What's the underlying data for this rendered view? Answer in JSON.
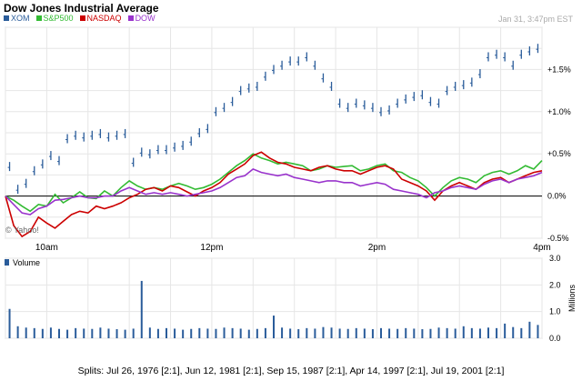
{
  "header": {
    "title": "Dow Jones Industrial Average",
    "timestamp": "Jan 31, 3:47pm EST"
  },
  "legend": [
    {
      "key": "XOM",
      "label": "XOM",
      "color": "#2a5c9a"
    },
    {
      "key": "SP500",
      "label": "S&P500",
      "color": "#33bb33"
    },
    {
      "key": "NASDAQ",
      "label": "NASDAQ",
      "color": "#cc0000"
    },
    {
      "key": "DOW",
      "label": "DOW",
      "color": "#9933cc"
    }
  ],
  "watermark": "© Yahoo!",
  "footer": {
    "splits": "Splits: Jul 26, 1976 [2:1], Jun 12, 1981 [2:1], Sep 15, 1987 [2:1], Apr 14, 1997 [2:1], Jul 19, 2001 [2:1]"
  },
  "chart_data": [
    {
      "type": "line",
      "x_label_ticks": [
        {
          "t": 10.0,
          "label": "10am"
        },
        {
          "t": 12.0,
          "label": "12pm"
        },
        {
          "t": 14.0,
          "label": "2pm"
        },
        {
          "t": 16.0,
          "label": "4pm"
        }
      ],
      "y_ticks": [
        {
          "v": 1.5,
          "label": "+1.5%"
        },
        {
          "v": 1.0,
          "label": "+1.0%"
        },
        {
          "v": 0.5,
          "label": "+0.5%"
        },
        {
          "v": 0.0,
          "label": "0.0%"
        },
        {
          "v": -0.5,
          "label": "-0.5%"
        }
      ],
      "x_range": [
        9.5,
        16.0
      ],
      "y_range": [
        -0.5,
        2.0
      ],
      "grid": true,
      "series": [
        {
          "name": "XOM",
          "style": "bars",
          "color": "#2a5c9a",
          "t": [
            9.55,
            9.65,
            9.75,
            9.85,
            9.95,
            10.05,
            10.15,
            10.25,
            10.35,
            10.45,
            10.55,
            10.65,
            10.75,
            10.85,
            10.95,
            11.05,
            11.15,
            11.25,
            11.35,
            11.45,
            11.55,
            11.65,
            11.75,
            11.85,
            11.95,
            12.05,
            12.15,
            12.25,
            12.35,
            12.45,
            12.55,
            12.65,
            12.75,
            12.85,
            12.95,
            13.05,
            13.15,
            13.25,
            13.35,
            13.45,
            13.55,
            13.65,
            13.75,
            13.85,
            13.95,
            14.05,
            14.15,
            14.25,
            14.35,
            14.45,
            14.55,
            14.65,
            14.75,
            14.85,
            14.95,
            15.05,
            15.15,
            15.25,
            15.35,
            15.45,
            15.55,
            15.65,
            15.75,
            15.85,
            15.95
          ],
          "v": [
            0.35,
            0.08,
            0.15,
            0.3,
            0.38,
            0.48,
            0.42,
            0.68,
            0.72,
            0.7,
            0.72,
            0.74,
            0.7,
            0.72,
            0.74,
            0.4,
            0.52,
            0.5,
            0.55,
            0.55,
            0.58,
            0.6,
            0.65,
            0.75,
            0.8,
            1.0,
            1.05,
            1.12,
            1.25,
            1.28,
            1.3,
            1.42,
            1.5,
            1.55,
            1.6,
            1.6,
            1.65,
            1.55,
            1.4,
            1.3,
            1.1,
            1.05,
            1.1,
            1.08,
            1.05,
            1.0,
            1.02,
            1.1,
            1.15,
            1.18,
            1.2,
            1.12,
            1.1,
            1.25,
            1.3,
            1.32,
            1.35,
            1.45,
            1.65,
            1.68,
            1.65,
            1.55,
            1.68,
            1.72,
            1.75
          ]
        },
        {
          "name": "S&P500",
          "style": "line",
          "color": "#33bb33",
          "t": [
            9.5,
            9.6,
            9.7,
            9.8,
            9.9,
            10.0,
            10.1,
            10.2,
            10.3,
            10.4,
            10.5,
            10.6,
            10.7,
            10.8,
            10.9,
            11.0,
            11.1,
            11.2,
            11.3,
            11.4,
            11.5,
            11.6,
            11.7,
            11.8,
            11.9,
            12.0,
            12.1,
            12.2,
            12.3,
            12.4,
            12.5,
            12.6,
            12.7,
            12.8,
            12.9,
            13.0,
            13.1,
            13.2,
            13.3,
            13.4,
            13.5,
            13.6,
            13.7,
            13.8,
            13.9,
            14.0,
            14.1,
            14.2,
            14.3,
            14.4,
            14.5,
            14.6,
            14.7,
            14.8,
            14.9,
            15.0,
            15.1,
            15.2,
            15.3,
            15.4,
            15.5,
            15.6,
            15.7,
            15.8,
            15.9,
            16.0
          ],
          "v": [
            0.0,
            -0.05,
            -0.12,
            -0.18,
            -0.1,
            -0.12,
            0.02,
            -0.08,
            -0.02,
            0.05,
            -0.02,
            -0.03,
            0.06,
            0.0,
            0.1,
            0.18,
            0.12,
            0.08,
            0.1,
            0.08,
            0.12,
            0.15,
            0.12,
            0.08,
            0.1,
            0.14,
            0.2,
            0.28,
            0.36,
            0.42,
            0.5,
            0.45,
            0.42,
            0.38,
            0.4,
            0.38,
            0.36,
            0.3,
            0.32,
            0.36,
            0.34,
            0.35,
            0.36,
            0.3,
            0.32,
            0.36,
            0.38,
            0.3,
            0.28,
            0.22,
            0.18,
            0.1,
            0.0,
            0.1,
            0.18,
            0.22,
            0.2,
            0.16,
            0.24,
            0.28,
            0.3,
            0.26,
            0.3,
            0.36,
            0.32,
            0.42
          ]
        },
        {
          "name": "NASDAQ",
          "style": "line",
          "color": "#cc0000",
          "t": [
            9.5,
            9.6,
            9.7,
            9.8,
            9.9,
            10.0,
            10.1,
            10.2,
            10.3,
            10.4,
            10.5,
            10.6,
            10.7,
            10.8,
            10.9,
            11.0,
            11.1,
            11.2,
            11.3,
            11.4,
            11.5,
            11.6,
            11.7,
            11.8,
            11.9,
            12.0,
            12.1,
            12.2,
            12.3,
            12.4,
            12.5,
            12.6,
            12.7,
            12.8,
            12.9,
            13.0,
            13.1,
            13.2,
            13.3,
            13.4,
            13.5,
            13.6,
            13.7,
            13.8,
            13.9,
            14.0,
            14.1,
            14.2,
            14.3,
            14.4,
            14.5,
            14.6,
            14.7,
            14.8,
            14.9,
            15.0,
            15.1,
            15.2,
            15.3,
            15.4,
            15.5,
            15.6,
            15.7,
            15.8,
            15.9,
            16.0
          ],
          "v": [
            0.0,
            -0.35,
            -0.48,
            -0.42,
            -0.25,
            -0.32,
            -0.38,
            -0.3,
            -0.22,
            -0.18,
            -0.2,
            -0.12,
            -0.15,
            -0.12,
            -0.08,
            -0.02,
            0.02,
            0.08,
            0.1,
            0.06,
            0.12,
            0.1,
            0.05,
            0.0,
            0.06,
            0.1,
            0.16,
            0.26,
            0.32,
            0.38,
            0.48,
            0.52,
            0.45,
            0.4,
            0.38,
            0.34,
            0.32,
            0.3,
            0.34,
            0.36,
            0.32,
            0.3,
            0.3,
            0.26,
            0.3,
            0.34,
            0.36,
            0.32,
            0.2,
            0.16,
            0.12,
            0.06,
            -0.05,
            0.06,
            0.12,
            0.16,
            0.12,
            0.08,
            0.16,
            0.2,
            0.22,
            0.16,
            0.2,
            0.24,
            0.28,
            0.3
          ]
        },
        {
          "name": "DOW",
          "style": "line",
          "color": "#9933cc",
          "t": [
            9.5,
            9.6,
            9.7,
            9.8,
            9.9,
            10.0,
            10.1,
            10.2,
            10.3,
            10.4,
            10.5,
            10.6,
            10.7,
            10.8,
            10.9,
            11.0,
            11.1,
            11.2,
            11.3,
            11.4,
            11.5,
            11.6,
            11.7,
            11.8,
            11.9,
            12.0,
            12.1,
            12.2,
            12.3,
            12.4,
            12.5,
            12.6,
            12.7,
            12.8,
            12.9,
            13.0,
            13.1,
            13.2,
            13.3,
            13.4,
            13.5,
            13.6,
            13.7,
            13.8,
            13.9,
            14.0,
            14.1,
            14.2,
            14.3,
            14.4,
            14.5,
            14.6,
            14.7,
            14.8,
            14.9,
            15.0,
            15.1,
            15.2,
            15.3,
            15.4,
            15.5,
            15.6,
            15.7,
            15.8,
            15.9,
            16.0
          ],
          "v": [
            0.0,
            -0.1,
            -0.2,
            -0.22,
            -0.15,
            -0.12,
            -0.05,
            -0.04,
            -0.02,
            0.0,
            -0.02,
            -0.02,
            0.0,
            0.0,
            0.06,
            0.1,
            0.06,
            0.02,
            0.04,
            0.02,
            0.04,
            0.02,
            0.0,
            0.02,
            0.04,
            0.06,
            0.1,
            0.16,
            0.22,
            0.24,
            0.32,
            0.28,
            0.26,
            0.24,
            0.26,
            0.22,
            0.2,
            0.18,
            0.16,
            0.18,
            0.18,
            0.16,
            0.16,
            0.12,
            0.14,
            0.16,
            0.14,
            0.08,
            0.06,
            0.04,
            0.02,
            -0.02,
            0.04,
            0.06,
            0.1,
            0.12,
            0.1,
            0.08,
            0.14,
            0.18,
            0.2,
            0.16,
            0.2,
            0.22,
            0.24,
            0.28
          ]
        }
      ]
    },
    {
      "type": "bar",
      "title": "Volume",
      "ylabel": "Millions",
      "y_ticks": [
        {
          "v": 3.0,
          "label": "3.0"
        },
        {
          "v": 2.0,
          "label": "2.0"
        },
        {
          "v": 1.0,
          "label": "1.0"
        },
        {
          "v": 0.0,
          "label": "0.0"
        }
      ],
      "y_range": [
        0,
        3.0
      ],
      "x_range": [
        9.5,
        16.0
      ],
      "t": [
        9.55,
        9.65,
        9.75,
        9.85,
        9.95,
        10.05,
        10.15,
        10.25,
        10.35,
        10.45,
        10.55,
        10.65,
        10.75,
        10.85,
        10.95,
        11.05,
        11.15,
        11.25,
        11.35,
        11.45,
        11.55,
        11.65,
        11.75,
        11.85,
        11.95,
        12.05,
        12.15,
        12.25,
        12.35,
        12.45,
        12.55,
        12.65,
        12.75,
        12.85,
        12.95,
        13.05,
        13.15,
        13.25,
        13.35,
        13.45,
        13.55,
        13.65,
        13.75,
        13.85,
        13.95,
        14.05,
        14.15,
        14.25,
        14.35,
        14.45,
        14.55,
        14.65,
        14.75,
        14.85,
        14.95,
        15.05,
        15.15,
        15.25,
        15.35,
        15.45,
        15.55,
        15.65,
        15.75,
        15.85,
        15.95
      ],
      "values": [
        1.1,
        0.45,
        0.4,
        0.38,
        0.35,
        0.4,
        0.35,
        0.32,
        0.38,
        0.36,
        0.35,
        0.4,
        0.36,
        0.34,
        0.32,
        0.36,
        2.15,
        0.4,
        0.35,
        0.38,
        0.36,
        0.32,
        0.35,
        0.38,
        0.36,
        0.35,
        0.4,
        0.38,
        0.36,
        0.32,
        0.35,
        0.38,
        0.85,
        0.4,
        0.36,
        0.34,
        0.38,
        0.36,
        0.42,
        0.4,
        0.36,
        0.35,
        0.38,
        0.36,
        0.34,
        0.38,
        0.36,
        0.35,
        0.38,
        0.36,
        0.34,
        0.35,
        0.4,
        0.38,
        0.36,
        0.45,
        0.38,
        0.36,
        0.4,
        0.38,
        0.55,
        0.42,
        0.38,
        0.62,
        0.5
      ]
    }
  ]
}
